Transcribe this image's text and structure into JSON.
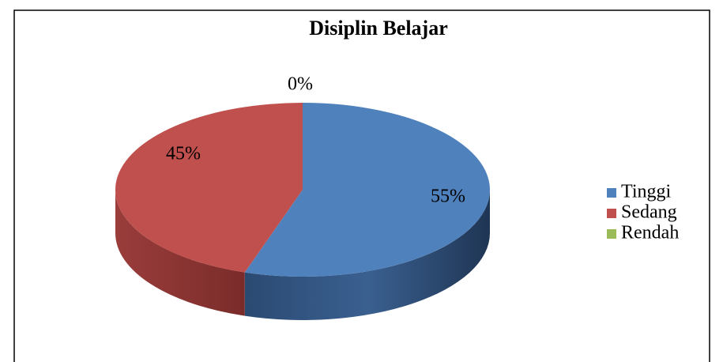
{
  "chart_data": {
    "type": "pie",
    "title": "Disiplin Belajar",
    "categories": [
      "Tinggi",
      "Sedang",
      "Rendah"
    ],
    "values": [
      55,
      45,
      0
    ],
    "value_labels": [
      "55%",
      "45%",
      "0%"
    ],
    "colors": [
      "#4f81bd",
      "#c0504d",
      "#9bbb59"
    ],
    "legend": "right"
  }
}
